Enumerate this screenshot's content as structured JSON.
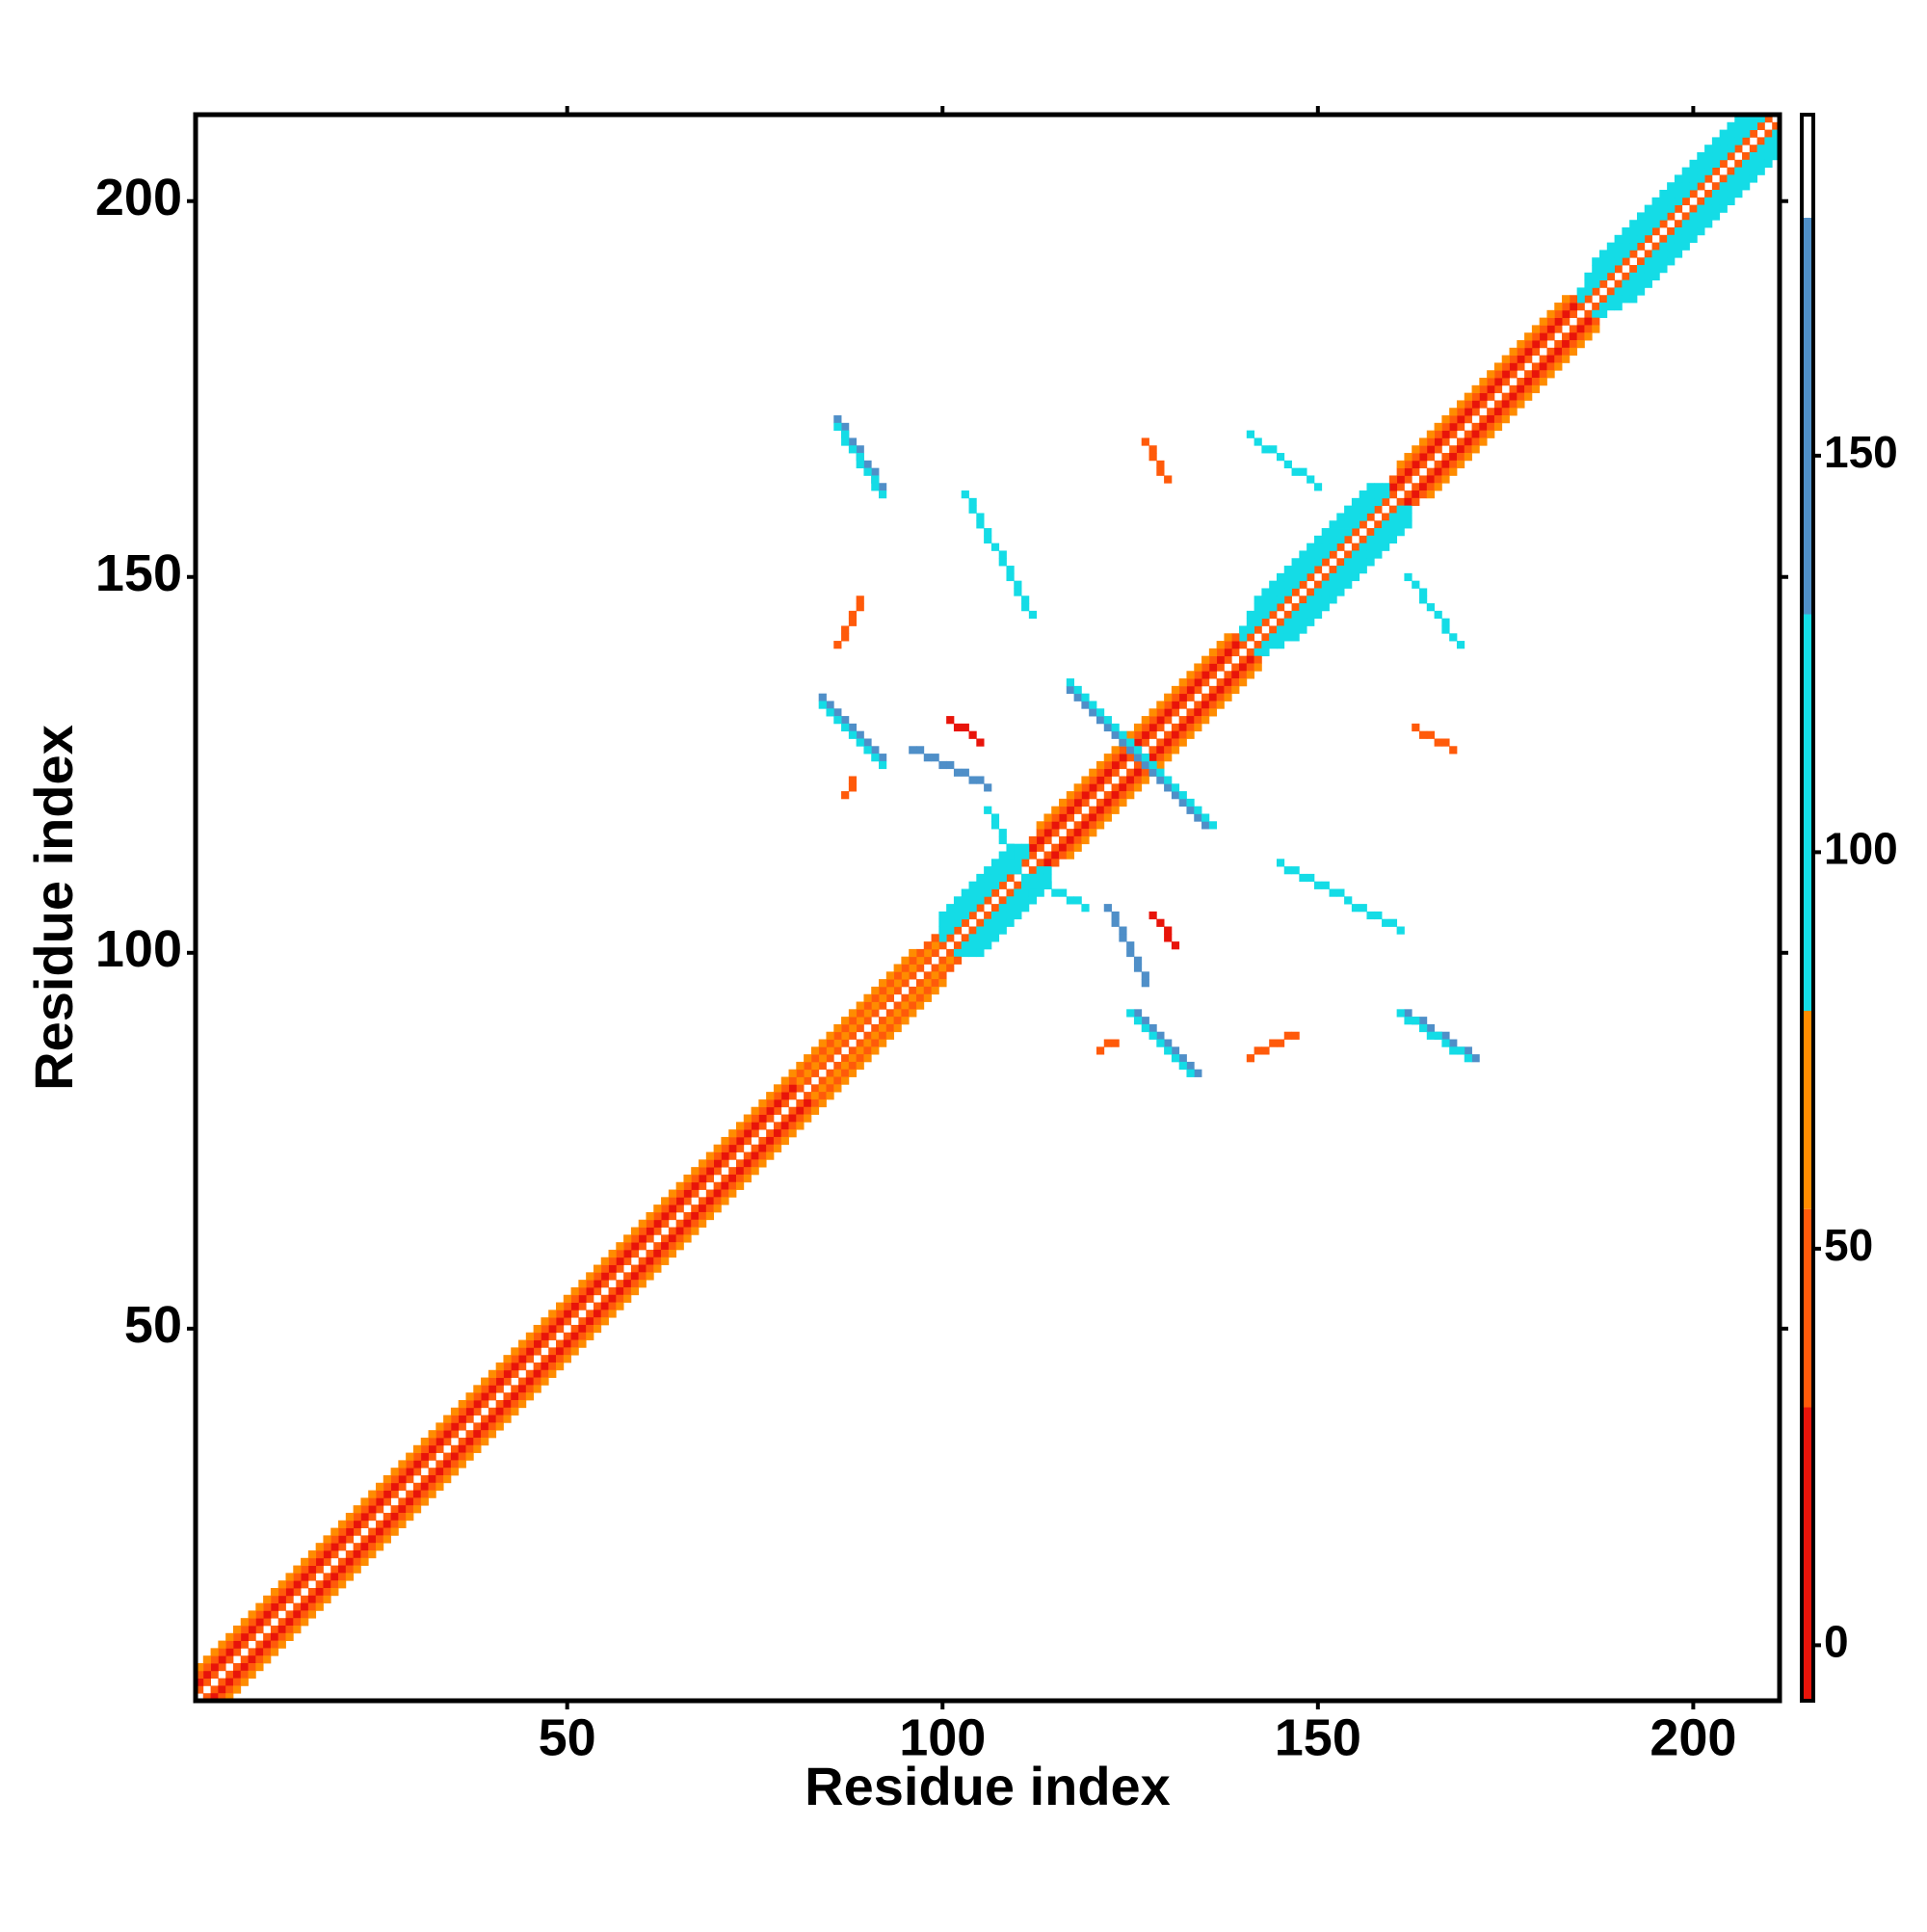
{
  "chart_data": {
    "type": "heatmap",
    "symmetric": true,
    "x_label": "Residue index",
    "y_label": "Residue index",
    "xlim": [
      0.5,
      211.5
    ],
    "ylim": [
      0.5,
      211.5
    ],
    "xticks": [
      50,
      100,
      150,
      200
    ],
    "yticks": [
      50,
      100,
      150,
      200
    ],
    "colorbar": {
      "lim": [
        -7,
        193
      ],
      "ticks": [
        0,
        50,
        100,
        150
      ],
      "bins": [
        -7,
        30,
        55,
        80,
        130,
        180,
        193
      ],
      "colors": [
        "#e8140a",
        "#ff5a0a",
        "#ff8c00",
        "#14dce6",
        "#4f8fc8",
        "#ffffff"
      ]
    },
    "segments": [
      {
        "x": [
          1,
          211
        ],
        "y": [
          1,
          211
        ],
        "value": 185
      },
      {
        "x": [
          1,
          210
        ],
        "y": [
          2,
          211
        ],
        "value": 42
      },
      {
        "x": [
          1,
          80
        ],
        "y": [
          3,
          82
        ],
        "value": 20
      },
      {
        "x": [
          81,
          99
        ],
        "y": [
          83,
          101
        ],
        "value": 60
      },
      {
        "x": [
          100,
          111
        ],
        "y": [
          102,
          113
        ],
        "value": 100
      },
      {
        "x": [
          112,
          139
        ],
        "y": [
          114,
          141
        ],
        "value": 22
      },
      {
        "x": [
          140,
          159
        ],
        "y": [
          142,
          161
        ],
        "value": 105
      },
      {
        "x": [
          160,
          184
        ],
        "y": [
          162,
          186
        ],
        "value": 25
      },
      {
        "x": [
          185,
          209
        ],
        "y": [
          187,
          211
        ],
        "value": 100
      },
      {
        "x": [
          1,
          99
        ],
        "y": [
          4,
          102
        ],
        "value": 45
      },
      {
        "x": [
          100,
          111
        ],
        "y": [
          103,
          114
        ],
        "value": 115
      },
      {
        "x": [
          112,
          139
        ],
        "y": [
          115,
          142
        ],
        "value": 50
      },
      {
        "x": [
          140,
          159
        ],
        "y": [
          143,
          162
        ],
        "value": 115
      },
      {
        "x": [
          160,
          184
        ],
        "y": [
          163,
          187
        ],
        "value": 48
      },
      {
        "x": [
          185,
          208
        ],
        "y": [
          188,
          211
        ],
        "value": 110
      },
      {
        "x": [
          1,
          96
        ],
        "y": [
          5,
          100
        ],
        "value": 68
      },
      {
        "x": [
          100,
          110
        ],
        "y": [
          104,
          114
        ],
        "value": 95
      },
      {
        "x": [
          113,
          138
        ],
        "y": [
          117,
          142
        ],
        "value": 62
      },
      {
        "x": [
          141,
          158
        ],
        "y": [
          145,
          162
        ],
        "value": 95
      },
      {
        "x": [
          161,
          183
        ],
        "y": [
          165,
          187
        ],
        "value": 70
      },
      {
        "x": [
          186,
          207
        ],
        "y": [
          190,
          211
        ],
        "value": 95
      },
      {
        "x": [
          100,
          109
        ],
        "y": [
          105,
          114
        ],
        "value": 110
      },
      {
        "x": [
          142,
          157
        ],
        "y": [
          147,
          162
        ],
        "value": 110
      },
      {
        "x": [
          187,
          206
        ],
        "y": [
          192,
          211
        ],
        "value": 105
      },
      {
        "x": [
          126,
          134
        ],
        "y": [
          92,
          84
        ],
        "value": 140
      },
      {
        "x": [
          125,
          133
        ],
        "y": [
          92,
          84
        ],
        "value": 110
      },
      {
        "x": [
          162,
          171
        ],
        "y": [
          92,
          86
        ],
        "value": 140
      },
      {
        "x": [
          161,
          170
        ],
        "y": [
          92,
          86
        ],
        "value": 110
      },
      {
        "x": [
          117,
          135
        ],
        "y": [
          135,
          117
        ],
        "value": 140
      },
      {
        "x": [
          118,
          136
        ],
        "y": [
          135,
          117
        ],
        "value": 110
      },
      {
        "x": [
          145,
          161
        ],
        "y": [
          112,
          103
        ],
        "value": 110
      },
      {
        "x": [
          122,
          127
        ],
        "y": [
          106,
          96
        ],
        "value": 135
      },
      {
        "x": [
          128,
          131
        ],
        "y": [
          105,
          101
        ],
        "value": 15
      },
      {
        "x": [
          141,
          147
        ],
        "y": [
          86,
          89
        ],
        "value": 45
      },
      {
        "x": [
          121,
          123
        ],
        "y": [
          87,
          88
        ],
        "value": 50
      },
      {
        "x": [
          163,
          168
        ],
        "y": [
          130,
          127
        ],
        "value": 45
      },
      {
        "x": [
          162,
          169
        ],
        "y": [
          150,
          141
        ],
        "value": 115
      },
      {
        "x": [
          108,
          119
        ],
        "y": [
          112,
          106
        ],
        "value": 105
      }
    ]
  }
}
